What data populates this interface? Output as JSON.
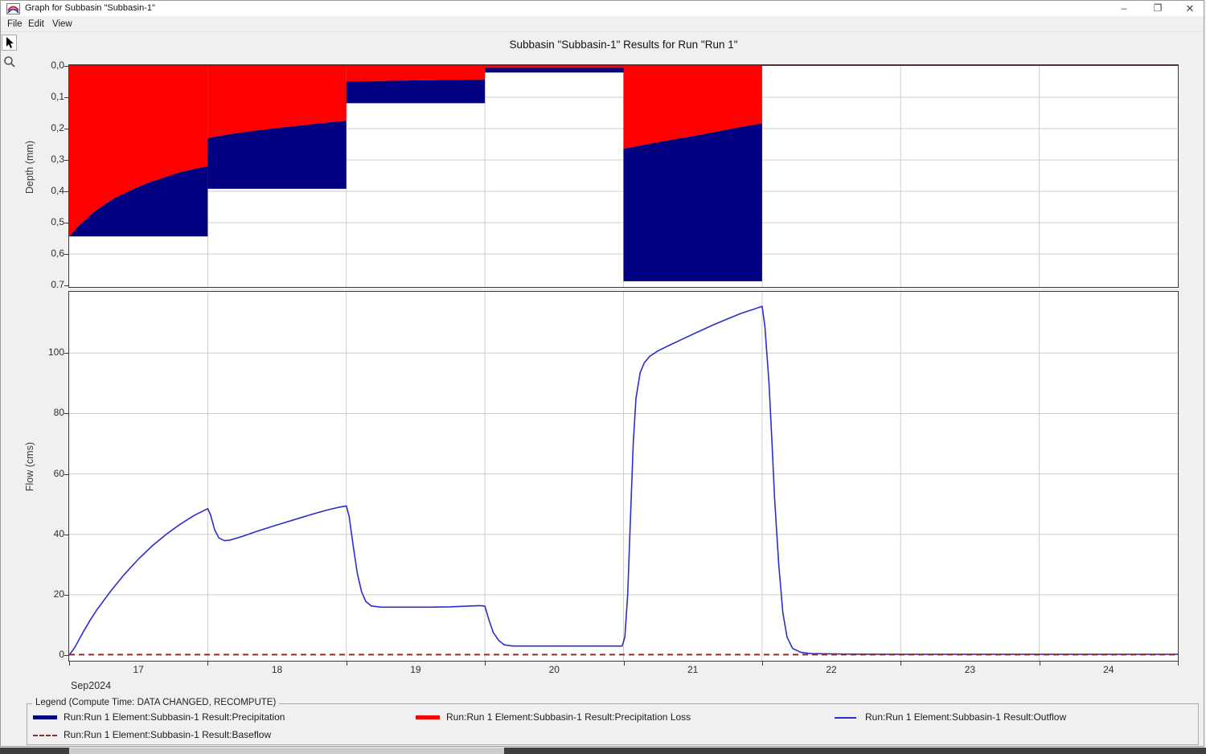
{
  "window": {
    "title": "Graph for Subbasin \"Subbasin-1\"",
    "controls": {
      "minimize": "–",
      "restore": "❐",
      "close": "✕"
    }
  },
  "menu": {
    "items": [
      "File",
      "Edit",
      "View"
    ]
  },
  "toolbar": {
    "tools": [
      "pointer-tool",
      "zoom-tool"
    ]
  },
  "chart_title": "Subbasin \"Subbasin-1\" Results for Run \"Run 1\"",
  "chart_data": [
    {
      "type": "area",
      "name": "precipitation-hyetograph",
      "ylabel": "Depth (mm)",
      "y_inverted": true,
      "ylim": [
        0,
        0.7
      ],
      "ytick_labels": [
        "0,0",
        "0,1",
        "0,2",
        "0,3",
        "0,4",
        "0,5",
        "0,6",
        "0.7"
      ],
      "ytick_values": [
        0,
        0.1,
        0.2,
        0.3,
        0.4,
        0.5,
        0.6,
        0.7
      ],
      "x_range_days": [
        17,
        25
      ],
      "grid": true,
      "colors": {
        "precipitation": "#000080",
        "precipitation_loss": "#ff0000"
      },
      "bars": [
        {
          "t0": 17,
          "t1": 18,
          "total_depth": 0.544,
          "loss_boundary": [
            [
              17,
              0.544
            ],
            [
              17.08,
              0.505
            ],
            [
              17.17,
              0.47
            ],
            [
              17.25,
              0.443
            ],
            [
              17.33,
              0.421
            ],
            [
              17.42,
              0.402
            ],
            [
              17.5,
              0.386
            ],
            [
              17.58,
              0.371
            ],
            [
              17.67,
              0.358
            ],
            [
              17.75,
              0.346
            ],
            [
              17.83,
              0.336
            ],
            [
              17.92,
              0.327
            ],
            [
              18,
              0.32
            ]
          ]
        },
        {
          "t0": 18,
          "t1": 19,
          "total_depth": 0.392,
          "loss_boundary": [
            [
              18,
              0.23
            ],
            [
              18.17,
              0.217
            ],
            [
              18.33,
              0.207
            ],
            [
              18.5,
              0.198
            ],
            [
              18.67,
              0.19
            ],
            [
              18.83,
              0.182
            ],
            [
              19,
              0.175
            ]
          ]
        },
        {
          "t0": 19,
          "t1": 20,
          "total_depth": 0.119,
          "loss_boundary": [
            [
              19,
              0.05
            ],
            [
              19.5,
              0.046
            ],
            [
              20,
              0.043
            ]
          ]
        },
        {
          "t0": 20,
          "t1": 21,
          "total_depth": 0.021,
          "loss_boundary": [
            [
              20,
              0.006
            ],
            [
              21,
              0.006
            ]
          ]
        },
        {
          "t0": 21,
          "t1": 22,
          "total_depth": 0.687,
          "loss_boundary": [
            [
              21,
              0.264
            ],
            [
              21.17,
              0.25
            ],
            [
              21.33,
              0.237
            ],
            [
              21.5,
              0.224
            ],
            [
              21.67,
              0.21
            ],
            [
              21.83,
              0.196
            ],
            [
              22,
              0.183
            ]
          ]
        }
      ]
    },
    {
      "type": "line",
      "name": "outflow-hydrograph",
      "ylabel": "Flow (cms)",
      "ylim": [
        -2,
        120
      ],
      "ytick_labels": [
        "0",
        "20",
        "40",
        "60",
        "80",
        "100"
      ],
      "ytick_values": [
        0,
        20,
        40,
        60,
        80,
        100
      ],
      "x_range_days": [
        17,
        25
      ],
      "xtick_labels": [
        "17",
        "18",
        "19",
        "20",
        "21",
        "22",
        "23",
        "24"
      ],
      "xtick_positions_days": [
        17.5,
        18.5,
        19.5,
        20.5,
        21.5,
        22.5,
        23.5,
        24.5
      ],
      "xlabel": "Sep2024",
      "grid": true,
      "colors": {
        "outflow": "#2d2dcb",
        "baseflow": "#8b2e2e"
      },
      "series": [
        {
          "name": "Outflow",
          "style": "solid",
          "points": [
            [
              17,
              0
            ],
            [
              17.04,
              2.5
            ],
            [
              17.1,
              7.5
            ],
            [
              17.15,
              11.5
            ],
            [
              17.2,
              15
            ],
            [
              17.3,
              21.2
            ],
            [
              17.4,
              26.8
            ],
            [
              17.5,
              31.8
            ],
            [
              17.6,
              36.2
            ],
            [
              17.7,
              40
            ],
            [
              17.8,
              43.3
            ],
            [
              17.9,
              46.2
            ],
            [
              17.96,
              47.6
            ],
            [
              18,
              48.5
            ],
            [
              18.02,
              46.5
            ],
            [
              18.05,
              41.5
            ],
            [
              18.08,
              38.8
            ],
            [
              18.12,
              37.9
            ],
            [
              18.16,
              38.1
            ],
            [
              18.25,
              39.3
            ],
            [
              18.35,
              40.9
            ],
            [
              18.45,
              42.4
            ],
            [
              18.55,
              43.8
            ],
            [
              18.65,
              45.2
            ],
            [
              18.75,
              46.6
            ],
            [
              18.85,
              47.9
            ],
            [
              18.95,
              49
            ],
            [
              19,
              49.4
            ],
            [
              19.02,
              46
            ],
            [
              19.05,
              36
            ],
            [
              19.08,
              27
            ],
            [
              19.11,
              21
            ],
            [
              19.14,
              17.8
            ],
            [
              19.18,
              16.3
            ],
            [
              19.25,
              15.9
            ],
            [
              19.4,
              15.9
            ],
            [
              19.6,
              15.9
            ],
            [
              19.75,
              16
            ],
            [
              19.9,
              16.3
            ],
            [
              19.97,
              16.4
            ],
            [
              20,
              16.2
            ],
            [
              20.03,
              11.5
            ],
            [
              20.06,
              7.5
            ],
            [
              20.1,
              4.8
            ],
            [
              20.14,
              3.4
            ],
            [
              20.2,
              3
            ],
            [
              20.4,
              3
            ],
            [
              20.7,
              3
            ],
            [
              20.99,
              3
            ],
            [
              21.01,
              6
            ],
            [
              21.03,
              20
            ],
            [
              21.05,
              45
            ],
            [
              21.07,
              70
            ],
            [
              21.09,
              85
            ],
            [
              21.12,
              93.5
            ],
            [
              21.15,
              96.8
            ],
            [
              21.19,
              99
            ],
            [
              21.25,
              100.8
            ],
            [
              21.35,
              103
            ],
            [
              21.45,
              105.2
            ],
            [
              21.55,
              107.3
            ],
            [
              21.65,
              109.4
            ],
            [
              21.75,
              111.3
            ],
            [
              21.85,
              113.2
            ],
            [
              21.93,
              114.4
            ],
            [
              22,
              115.5
            ],
            [
              22.02,
              109
            ],
            [
              22.05,
              90
            ],
            [
              22.07,
              72
            ],
            [
              22.09,
              52
            ],
            [
              22.12,
              30
            ],
            [
              22.15,
              14
            ],
            [
              22.18,
              6
            ],
            [
              22.22,
              2.2
            ],
            [
              22.28,
              0.9
            ],
            [
              22.35,
              0.5
            ],
            [
              22.6,
              0.35
            ],
            [
              23,
              0.3
            ],
            [
              24,
              0.3
            ],
            [
              25,
              0.3
            ]
          ]
        },
        {
          "name": "Baseflow",
          "style": "dashed",
          "constant_value": 0.15
        }
      ]
    }
  ],
  "legend": {
    "box_title": "Legend (Compute Time: DATA CHANGED, RECOMPUTE)",
    "items": [
      {
        "label": "Run:Run 1 Element:Subbasin-1 Result:Precipitation",
        "swatch": "thick-line",
        "color": "#000080"
      },
      {
        "label": "Run:Run 1 Element:Subbasin-1 Result:Precipitation Loss",
        "swatch": "thick-line",
        "color": "#ff0000"
      },
      {
        "label": "Run:Run 1 Element:Subbasin-1 Result:Outflow",
        "swatch": "thin-line",
        "color": "#2d2dcb"
      },
      {
        "label": "Run:Run 1 Element:Subbasin-1 Result:Baseflow",
        "swatch": "dashed-line",
        "color": "#8b2e2e"
      }
    ]
  }
}
